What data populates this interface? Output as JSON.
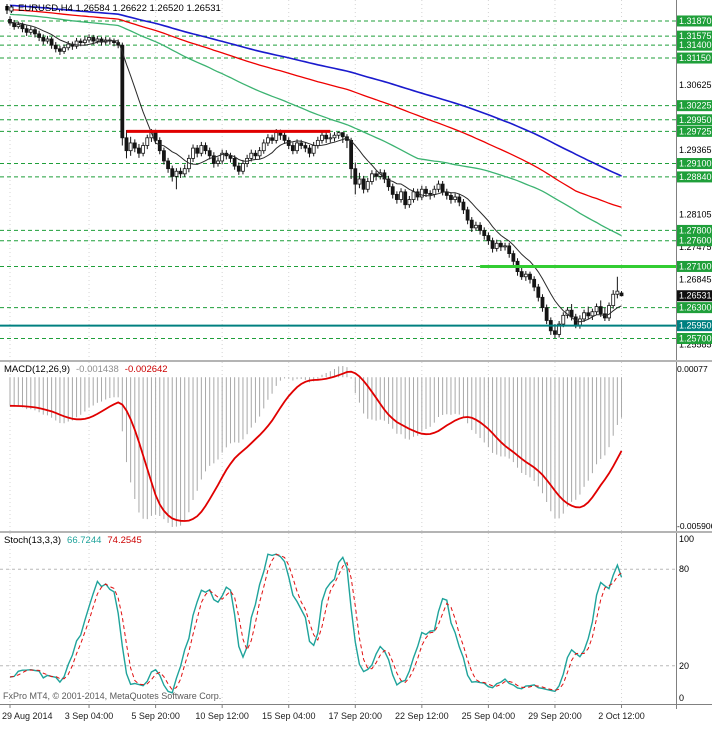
{
  "header": {
    "title": "EURUSD,H4 1.26584 1.26622 1.26520 1.26531"
  },
  "footer": {
    "copyright": "FxPro MT4, © 2001-2014, MetaQuotes Software Corp."
  },
  "time_axis": {
    "labels": [
      {
        "text": "29 Aug 2014",
        "candle": 0
      },
      {
        "text": "3 Sep 04:00",
        "candle": 19
      },
      {
        "text": "5 Sep 20:00",
        "candle": 35
      },
      {
        "text": "10 Sep 12:00",
        "candle": 51
      },
      {
        "text": "15 Sep 04:00",
        "candle": 67
      },
      {
        "text": "17 Sep 20:00",
        "candle": 83
      },
      {
        "text": "22 Sep 12:00",
        "candle": 99
      },
      {
        "text": "25 Sep 04:00",
        "candle": 115
      },
      {
        "text": "29 Sep 20:00",
        "candle": 131
      },
      {
        "text": "2 Oct 12:00",
        "candle": 147
      }
    ]
  },
  "chart_data": {
    "type": "candlestick",
    "symbol": "EURUSD",
    "timeframe": "H4",
    "current": {
      "open": "1.26584",
      "high": "1.26622",
      "low": "1.26520",
      "close": "1.26531"
    },
    "price_axis": {
      "min": 1.2536,
      "max": 1.322,
      "decimals": 5,
      "ticks": [
        1.30625,
        1.29365,
        1.28105,
        1.27475,
        1.26845,
        1.25585
      ]
    },
    "level_lines": {
      "green_dashed": [
        1.3187,
        1.31575,
        1.314,
        1.3115,
        1.30225,
        1.2995,
        1.29725,
        1.291,
        1.2884,
        1.278,
        1.276,
        1.271,
        1.263,
        1.257
      ],
      "teal_solid": 1.2595,
      "red_segment": {
        "price": 1.29725,
        "from": 28,
        "to": 77
      },
      "green_segment": {
        "price": 1.271,
        "from": 113,
        "to_edge": true
      },
      "current_price": 1.26531
    },
    "moving_averages": [
      {
        "period": 9,
        "color": "#2a2a2a",
        "width": 1
      },
      {
        "period": 72,
        "color": "#3cb371",
        "width": 1.3
      },
      {
        "period": 110,
        "color": "#ee0000",
        "width": 1.3
      },
      {
        "period": 144,
        "color": "#1a1acd",
        "width": 1.6
      }
    ],
    "history_pad": {
      "length": 150,
      "ma_start": 1.3255,
      "osc_start": 1.344
    },
    "candles": [
      [
        1.319,
        1.3196,
        1.3178,
        1.3183
      ],
      [
        1.3183,
        1.3189,
        1.317,
        1.3176
      ],
      [
        1.3176,
        1.3186,
        1.3172,
        1.318
      ],
      [
        1.318,
        1.3184,
        1.3165,
        1.3172
      ],
      [
        1.3172,
        1.3178,
        1.3158,
        1.3165
      ],
      [
        1.3165,
        1.3177,
        1.316,
        1.317
      ],
      [
        1.317,
        1.3174,
        1.3155,
        1.3162
      ],
      [
        1.3162,
        1.3168,
        1.3148,
        1.3155
      ],
      [
        1.3155,
        1.3161,
        1.3141,
        1.3148
      ],
      [
        1.3148,
        1.3158,
        1.3143,
        1.3152
      ],
      [
        1.3152,
        1.3156,
        1.3133,
        1.314
      ],
      [
        1.314,
        1.3146,
        1.3126,
        1.3133
      ],
      [
        1.3133,
        1.3139,
        1.3121,
        1.3128
      ],
      [
        1.3128,
        1.3141,
        1.3123,
        1.3135
      ],
      [
        1.3135,
        1.3148,
        1.313,
        1.3142
      ],
      [
        1.3142,
        1.3147,
        1.3131,
        1.3138
      ],
      [
        1.3138,
        1.3154,
        1.3133,
        1.3148
      ],
      [
        1.3148,
        1.3153,
        1.3138,
        1.3145
      ],
      [
        1.3145,
        1.3157,
        1.314,
        1.315
      ],
      [
        1.315,
        1.3161,
        1.3145,
        1.3155
      ],
      [
        1.3155,
        1.316,
        1.3141,
        1.3148
      ],
      [
        1.3148,
        1.3158,
        1.3143,
        1.3152
      ],
      [
        1.3152,
        1.3156,
        1.3139,
        1.3146
      ],
      [
        1.3146,
        1.3156,
        1.3141,
        1.315
      ],
      [
        1.315,
        1.3155,
        1.3141,
        1.3148
      ],
      [
        1.3148,
        1.3153,
        1.3138,
        1.3145
      ],
      [
        1.3145,
        1.3151,
        1.3134,
        1.314
      ],
      [
        1.314,
        1.3145,
        1.2945,
        1.296
      ],
      [
        1.296,
        1.2975,
        1.292,
        1.2935
      ],
      [
        1.2935,
        1.2962,
        1.2925,
        1.295
      ],
      [
        1.295,
        1.2957,
        1.2932,
        1.294
      ],
      [
        1.294,
        1.2948,
        1.2921,
        1.293
      ],
      [
        1.293,
        1.2951,
        1.2924,
        1.2945
      ],
      [
        1.2945,
        1.2966,
        1.2938,
        1.296
      ],
      [
        1.296,
        1.2977,
        1.2952,
        1.297
      ],
      [
        1.297,
        1.2976,
        1.2948,
        1.2955
      ],
      [
        1.2955,
        1.2961,
        1.2928,
        1.2935
      ],
      [
        1.2935,
        1.2941,
        1.2908,
        1.2915
      ],
      [
        1.2915,
        1.2921,
        1.2892,
        1.29
      ],
      [
        1.29,
        1.2906,
        1.2875,
        1.2885
      ],
      [
        1.2885,
        1.2901,
        1.286,
        1.2895
      ],
      [
        1.2895,
        1.2902,
        1.2882,
        1.289
      ],
      [
        1.289,
        1.2908,
        1.2884,
        1.29
      ],
      [
        1.29,
        1.2927,
        1.2893,
        1.292
      ],
      [
        1.292,
        1.2947,
        1.2913,
        1.294
      ],
      [
        1.294,
        1.2946,
        1.2922,
        1.293
      ],
      [
        1.293,
        1.2952,
        1.2924,
        1.2945
      ],
      [
        1.2945,
        1.2951,
        1.2928,
        1.2935
      ],
      [
        1.2935,
        1.2941,
        1.2918,
        1.2925
      ],
      [
        1.2925,
        1.2932,
        1.2902,
        1.291
      ],
      [
        1.291,
        1.2922,
        1.2904,
        1.2915
      ],
      [
        1.2915,
        1.2937,
        1.2909,
        1.293
      ],
      [
        1.293,
        1.2936,
        1.2918,
        1.2925
      ],
      [
        1.2925,
        1.2931,
        1.2912,
        1.292
      ],
      [
        1.292,
        1.2926,
        1.2898,
        1.2905
      ],
      [
        1.2905,
        1.2912,
        1.2888,
        1.2895
      ],
      [
        1.2895,
        1.2917,
        1.2889,
        1.291
      ],
      [
        1.291,
        1.2927,
        1.2903,
        1.292
      ],
      [
        1.292,
        1.2937,
        1.2914,
        1.293
      ],
      [
        1.293,
        1.2936,
        1.2918,
        1.2925
      ],
      [
        1.2925,
        1.2942,
        1.2919,
        1.2935
      ],
      [
        1.2935,
        1.2957,
        1.2929,
        1.295
      ],
      [
        1.295,
        1.2967,
        1.2944,
        1.296
      ],
      [
        1.296,
        1.2966,
        1.2948,
        1.2955
      ],
      [
        1.2955,
        1.2977,
        1.2949,
        1.297
      ],
      [
        1.297,
        1.2976,
        1.2956,
        1.2965
      ],
      [
        1.2965,
        1.2971,
        1.2948,
        1.2955
      ],
      [
        1.2955,
        1.2961,
        1.2938,
        1.2945
      ],
      [
        1.2945,
        1.2951,
        1.2928,
        1.2935
      ],
      [
        1.2935,
        1.2957,
        1.2929,
        1.295
      ],
      [
        1.295,
        1.2956,
        1.2938,
        1.2945
      ],
      [
        1.2945,
        1.2951,
        1.2932,
        1.294
      ],
      [
        1.294,
        1.2946,
        1.2922,
        1.293
      ],
      [
        1.293,
        1.2952,
        1.2924,
        1.2945
      ],
      [
        1.2945,
        1.2962,
        1.2939,
        1.2955
      ],
      [
        1.2955,
        1.2972,
        1.2949,
        1.2965
      ],
      [
        1.2965,
        1.2971,
        1.295,
        1.2958
      ],
      [
        1.2958,
        1.2969,
        1.2951,
        1.296
      ],
      [
        1.296,
        1.2971,
        1.2953,
        1.2965
      ],
      [
        1.2965,
        1.2972,
        1.2958,
        1.297
      ],
      [
        1.297,
        1.2971,
        1.295,
        1.2962
      ],
      [
        1.2962,
        1.2967,
        1.294,
        1.2955
      ],
      [
        1.2955,
        1.296,
        1.288,
        1.29
      ],
      [
        1.29,
        1.2912,
        1.285,
        1.287
      ],
      [
        1.287,
        1.2892,
        1.2862,
        1.288
      ],
      [
        1.288,
        1.2886,
        1.2852,
        1.286
      ],
      [
        1.286,
        1.2882,
        1.2854,
        1.2875
      ],
      [
        1.2875,
        1.2897,
        1.2869,
        1.289
      ],
      [
        1.289,
        1.2896,
        1.2877,
        1.2885
      ],
      [
        1.2885,
        1.2899,
        1.2879,
        1.2892
      ],
      [
        1.2892,
        1.2898,
        1.2872,
        1.288
      ],
      [
        1.288,
        1.2886,
        1.2857,
        1.2865
      ],
      [
        1.2865,
        1.2871,
        1.2842,
        1.285
      ],
      [
        1.285,
        1.2856,
        1.2832,
        1.284
      ],
      [
        1.284,
        1.2862,
        1.2834,
        1.2855
      ],
      [
        1.2855,
        1.286,
        1.2822,
        1.283
      ],
      [
        1.283,
        1.2847,
        1.2824,
        1.284
      ],
      [
        1.284,
        1.2862,
        1.2834,
        1.2855
      ],
      [
        1.2855,
        1.2861,
        1.2838,
        1.2845
      ],
      [
        1.2845,
        1.2867,
        1.2839,
        1.286
      ],
      [
        1.286,
        1.2866,
        1.2845,
        1.2852
      ],
      [
        1.2852,
        1.2858,
        1.284,
        1.285
      ],
      [
        1.285,
        1.2867,
        1.2844,
        1.286
      ],
      [
        1.286,
        1.2877,
        1.2854,
        1.287
      ],
      [
        1.287,
        1.2876,
        1.2848,
        1.2855
      ],
      [
        1.2855,
        1.2861,
        1.284,
        1.2848
      ],
      [
        1.2848,
        1.2854,
        1.2832,
        1.284
      ],
      [
        1.284,
        1.2852,
        1.2834,
        1.2845
      ],
      [
        1.2845,
        1.2851,
        1.2827,
        1.2835
      ],
      [
        1.2835,
        1.2841,
        1.2812,
        1.282
      ],
      [
        1.282,
        1.2826,
        1.2792,
        1.28
      ],
      [
        1.28,
        1.2806,
        1.2777,
        1.2785
      ],
      [
        1.2785,
        1.2797,
        1.2779,
        1.279
      ],
      [
        1.279,
        1.2796,
        1.2772,
        1.278
      ],
      [
        1.278,
        1.2786,
        1.2762,
        1.277
      ],
      [
        1.277,
        1.2776,
        1.2752,
        1.276
      ],
      [
        1.276,
        1.2766,
        1.2737,
        1.2745
      ],
      [
        1.2745,
        1.2762,
        1.2739,
        1.2755
      ],
      [
        1.2755,
        1.276,
        1.274,
        1.2748
      ],
      [
        1.2748,
        1.2756,
        1.2741,
        1.275
      ],
      [
        1.275,
        1.2756,
        1.2727,
        1.2735
      ],
      [
        1.2735,
        1.2741,
        1.2712,
        1.272
      ],
      [
        1.272,
        1.2726,
        1.2692,
        1.27
      ],
      [
        1.27,
        1.2712,
        1.2684,
        1.269
      ],
      [
        1.269,
        1.2701,
        1.2682,
        1.2695
      ],
      [
        1.2695,
        1.27,
        1.2677,
        1.2685
      ],
      [
        1.2685,
        1.2691,
        1.2662,
        1.267
      ],
      [
        1.267,
        1.2676,
        1.2642,
        1.265
      ],
      [
        1.265,
        1.2656,
        1.2622,
        1.263
      ],
      [
        1.263,
        1.2636,
        1.2598,
        1.2605
      ],
      [
        1.2605,
        1.2611,
        1.2577,
        1.2585
      ],
      [
        1.2585,
        1.2598,
        1.2571,
        1.2578
      ],
      [
        1.2578,
        1.2604,
        1.2572,
        1.2598
      ],
      [
        1.2598,
        1.2621,
        1.2592,
        1.2615
      ],
      [
        1.2615,
        1.2631,
        1.2609,
        1.2625
      ],
      [
        1.2625,
        1.2637,
        1.2605,
        1.2612
      ],
      [
        1.2612,
        1.2618,
        1.259,
        1.2596
      ],
      [
        1.2596,
        1.2615,
        1.2589,
        1.2608
      ],
      [
        1.2608,
        1.2626,
        1.2602,
        1.262
      ],
      [
        1.262,
        1.2632,
        1.2608,
        1.2614
      ],
      [
        1.2614,
        1.2628,
        1.2606,
        1.2622
      ],
      [
        1.2622,
        1.2638,
        1.2616,
        1.2632
      ],
      [
        1.2632,
        1.2644,
        1.2612,
        1.2618
      ],
      [
        1.2618,
        1.263,
        1.2604,
        1.261
      ],
      [
        1.261,
        1.264,
        1.2604,
        1.2634
      ],
      [
        1.2634,
        1.2664,
        1.2628,
        1.2656
      ],
      [
        1.2656,
        1.269,
        1.2648,
        1.2662
      ],
      [
        1.26584,
        1.26622,
        1.2652,
        1.26531
      ]
    ],
    "indicators": {
      "macd": {
        "name": "MACD(12,26,9)",
        "value_main": "-0.001438",
        "value_signal": "-0.002642",
        "fast": 12,
        "slow": 26,
        "smooth": 9,
        "axis_top": "0.00077",
        "axis_bottom": "-0.005906",
        "histogram_color": "#a8a8a8",
        "signal_color": "#e00000"
      },
      "stoch": {
        "name": "Stoch(13,3,3)",
        "value_k": "66.7244",
        "value_d": "74.2545",
        "k_period": 13,
        "d_period": 3,
        "slowing": 3,
        "axis_labels": [
          100,
          80,
          20,
          0
        ],
        "dashed_levels": [
          80,
          20
        ],
        "k_color": "#1fa39b",
        "d_color": "#e01010"
      }
    },
    "colors": {
      "grid": "#d4d4d4",
      "green_level": "#1f9f3a",
      "teal": "#008080",
      "red_line": "#e00000",
      "green_seg": "#32cd32",
      "bull": "#ffffff",
      "bear": "#151515",
      "outline": "#151515",
      "axis_text": "#000000",
      "label_text": "#ffffff",
      "current_bg": "#111111"
    }
  }
}
